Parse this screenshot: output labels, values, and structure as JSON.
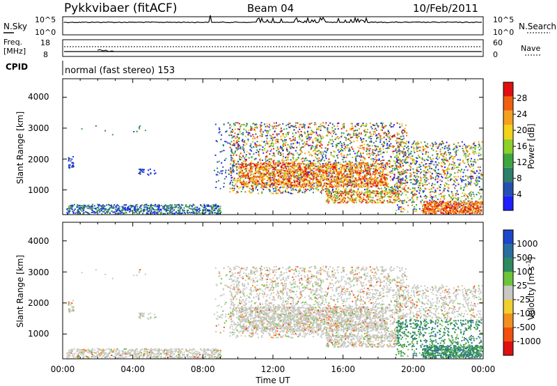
{
  "header": {
    "station": "Pykkvibaer (fitACF)",
    "beam": "Beam 04",
    "date": "10/Feb/2011"
  },
  "noise_panel": {
    "left_label": "N.Sky",
    "left_ticks": [
      "10^5",
      "10^0"
    ],
    "right_label": "N.Search",
    "right_ticks": [
      "10^5",
      "10^0"
    ]
  },
  "freq_panel": {
    "left_label_1": "Freq.",
    "left_label_2": "[MHz]",
    "left_ticks": [
      "18",
      "8"
    ],
    "right_label": "Nave",
    "right_ticks": [
      "60",
      "0"
    ]
  },
  "cpid_panel": {
    "label": "CPID",
    "text": "normal (fast stereo) 153"
  },
  "chart_data": [
    {
      "type": "heatmap",
      "title": "",
      "xlabel": "",
      "ylabel": "Slant Range [km]",
      "y_ticks": [
        "1000",
        "2000",
        "3000",
        "4000"
      ],
      "ylim": [
        200,
        4600
      ],
      "colorbar_label": "Power [dB]",
      "colorbar_ticks": [
        "4",
        "8",
        "12",
        "16",
        "20",
        "24",
        "28"
      ],
      "colorbar_colors": [
        "#1e1eff",
        "#2650b0",
        "#2e7e6a",
        "#3fa63f",
        "#8fcf2a",
        "#f2d21a",
        "#f4a020",
        "#f06010",
        "#e01010"
      ]
    },
    {
      "type": "heatmap",
      "title": "",
      "xlabel": "Time UT",
      "ylabel": "Slant Range [km]",
      "y_ticks": [
        "1000",
        "2000",
        "3000",
        "4000"
      ],
      "ylim": [
        200,
        4600
      ],
      "x_ticks": [
        "00:00",
        "04:00",
        "08:00",
        "12:00",
        "16:00",
        "20:00",
        "00:00"
      ],
      "colorbar_label": "Velocity [m s",
      "colorbar_label_sup": "-1",
      "colorbar_label_end": "]",
      "colorbar_ticks": [
        "1000",
        "500",
        "100",
        "25",
        "-25",
        "-100",
        "-500",
        "-1000"
      ],
      "colorbar_colors": [
        "#1e46c8",
        "#2a6ea0",
        "#2e8a5e",
        "#6ec43a",
        "#c8c8c4",
        "#f0d030",
        "#f09020",
        "#f05010",
        "#e01010"
      ]
    }
  ]
}
